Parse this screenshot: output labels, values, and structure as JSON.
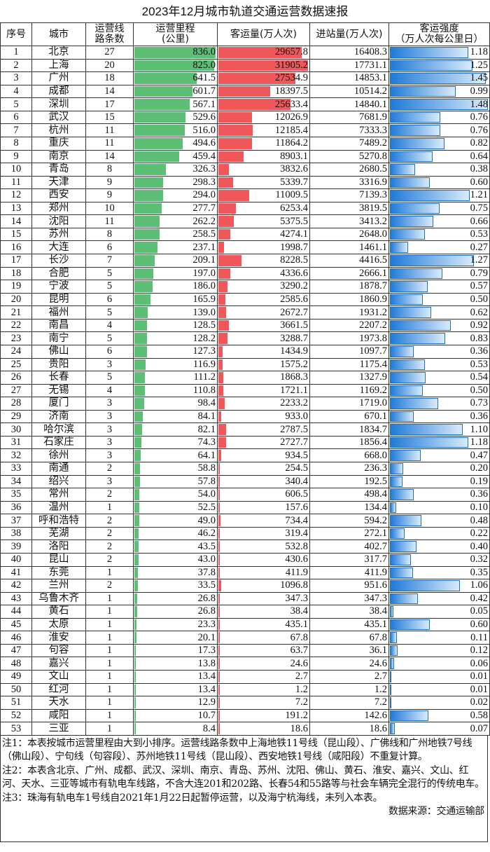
{
  "title": "2023年12月城市轨道交通运营数据速报",
  "headers": [
    "序号",
    "城市",
    "运营线路条数",
    "运营里程(公里)",
    "客运量(万人次)",
    "进站量(万人次)",
    "客运强度（万人次每公里日）"
  ],
  "header_lines": [
    [
      "序号"
    ],
    [
      "城市"
    ],
    [
      "运营线",
      "路条数"
    ],
    [
      "运营里程",
      "(公里)"
    ],
    [
      "客运量(万人次)"
    ],
    [
      "进站量(万人次)"
    ],
    [
      "客运强度",
      "（万人次每公里日）"
    ]
  ],
  "colors": {
    "mileage_bar": "#5cbf75",
    "passenger_bar": "#f0575a",
    "intensity_bar": "#1f7ad8"
  },
  "rows": [
    [
      "1",
      "北京",
      "27",
      "836.0",
      "29657.8",
      "16408.3",
      "1.18"
    ],
    [
      "2",
      "上海",
      "20",
      "825.0",
      "31905.2",
      "17731.1",
      "1.25"
    ],
    [
      "3",
      "广州",
      "18",
      "641.5",
      "27534.9",
      "14853.1",
      "1.45"
    ],
    [
      "4",
      "成都",
      "14",
      "601.7",
      "18397.5",
      "10514.2",
      "0.99"
    ],
    [
      "5",
      "深圳",
      "17",
      "567.1",
      "25633.4",
      "14840.1",
      "1.48"
    ],
    [
      "6",
      "武汉",
      "15",
      "529.6",
      "12026.9",
      "7681.9",
      "0.76"
    ],
    [
      "7",
      "杭州",
      "11",
      "516.0",
      "12185.4",
      "7333.3",
      "0.76"
    ],
    [
      "8",
      "重庆",
      "11",
      "494.6",
      "11864.2",
      "7489.2",
      "0.82"
    ],
    [
      "9",
      "南京",
      "14",
      "459.4",
      "8903.1",
      "5270.8",
      "0.64"
    ],
    [
      "10",
      "青岛",
      "8",
      "326.3",
      "3832.6",
      "2680.5",
      "0.38"
    ],
    [
      "11",
      "天津",
      "9",
      "298.3",
      "5339.7",
      "3316.9",
      "0.60"
    ],
    [
      "12",
      "西安",
      "9",
      "294.0",
      "11009.5",
      "7139.3",
      "1.21"
    ],
    [
      "13",
      "郑州",
      "10",
      "277.7",
      "6253.4",
      "3819.5",
      "0.75"
    ],
    [
      "14",
      "沈阳",
      "11",
      "262.2",
      "5375.5",
      "3413.2",
      "0.66"
    ],
    [
      "15",
      "苏州",
      "8",
      "258.5",
      "4274.1",
      "2648.0",
      "0.53"
    ],
    [
      "16",
      "大连",
      "6",
      "237.1",
      "1998.7",
      "1461.1",
      "0.27"
    ],
    [
      "17",
      "长沙",
      "7",
      "209.1",
      "8228.5",
      "4416.5",
      "1.27"
    ],
    [
      "18",
      "合肥",
      "5",
      "197.0",
      "4336.6",
      "2666.1",
      "0.79"
    ],
    [
      "19",
      "宁波",
      "5",
      "186.0",
      "3290.2",
      "1878.7",
      "0.57"
    ],
    [
      "20",
      "昆明",
      "6",
      "165.9",
      "2585.6",
      "1860.9",
      "0.50"
    ],
    [
      "21",
      "福州",
      "5",
      "139.0",
      "2672.7",
      "1931.2",
      "0.62"
    ],
    [
      "22",
      "南昌",
      "4",
      "128.5",
      "3661.5",
      "2207.2",
      "0.92"
    ],
    [
      "23",
      "南宁",
      "5",
      "128.2",
      "3288.7",
      "1973.8",
      "0.83"
    ],
    [
      "24",
      "佛山",
      "6",
      "127.3",
      "1434.9",
      "1097.7",
      "0.36"
    ],
    [
      "25",
      "贵阳",
      "3",
      "116.9",
      "1575.2",
      "1175.4",
      "0.53"
    ],
    [
      "26",
      "长春",
      "5",
      "111.2",
      "1868.3",
      "1327.9",
      "0.54"
    ],
    [
      "27",
      "无锡",
      "4",
      "110.8",
      "1721.1",
      "1169.2",
      "0.50"
    ],
    [
      "28",
      "厦门",
      "3",
      "98.4",
      "2233.2",
      "1719.0",
      "0.73"
    ],
    [
      "29",
      "济南",
      "3",
      "84.1",
      "933.0",
      "670.1",
      "0.36"
    ],
    [
      "30",
      "哈尔滨",
      "3",
      "82.1",
      "2787.5",
      "1834.7",
      "1.10"
    ],
    [
      "31",
      "石家庄",
      "3",
      "74.3",
      "2727.7",
      "1856.4",
      "1.18"
    ],
    [
      "32",
      "徐州",
      "3",
      "64.1",
      "934.5",
      "668.0",
      "0.47"
    ],
    [
      "33",
      "南通",
      "2",
      "58.8",
      "254.5",
      "236.3",
      "0.20"
    ],
    [
      "34",
      "绍兴",
      "3",
      "57.8",
      "340.4",
      "192.5",
      "0.19"
    ],
    [
      "35",
      "常州",
      "2",
      "54.0",
      "606.5",
      "498.4",
      "0.36"
    ],
    [
      "36",
      "温州",
      "1",
      "52.5",
      "157.6",
      "134.4",
      "0.10"
    ],
    [
      "37",
      "呼和浩特",
      "2",
      "49.0",
      "734.4",
      "594.2",
      "0.48"
    ],
    [
      "38",
      "芜湖",
      "2",
      "46.2",
      "319.4",
      "272.1",
      "0.22"
    ],
    [
      "39",
      "洛阳",
      "2",
      "43.5",
      "532.8",
      "402.7",
      "0.40"
    ],
    [
      "40",
      "昆山",
      "2",
      "43.0",
      "430.6",
      "317.7",
      "0.32"
    ],
    [
      "41",
      "东莞",
      "1",
      "37.8",
      "411.9",
      "411.9",
      "0.35"
    ],
    [
      "42",
      "兰州",
      "2",
      "33.5",
      "1096.8",
      "951.6",
      "1.06"
    ],
    [
      "43",
      "乌鲁木齐",
      "1",
      "26.8",
      "347.3",
      "347.3",
      "0.42"
    ],
    [
      "44",
      "黄石",
      "1",
      "26.8",
      "38.4",
      "38.4",
      "0.05"
    ],
    [
      "45",
      "太原",
      "1",
      "23.3",
      "435.1",
      "435.1",
      "0.60"
    ],
    [
      "46",
      "淮安",
      "1",
      "20.1",
      "67.8",
      "67.8",
      "0.11"
    ],
    [
      "47",
      "句容",
      "1",
      "17.3",
      "63.7",
      "36.1",
      "0.12"
    ],
    [
      "48",
      "嘉兴",
      "1",
      "13.8",
      "24.6",
      "24.6",
      "0.06"
    ],
    [
      "49",
      "文山",
      "1",
      "13.4",
      "2.7",
      "2.7",
      "0.01"
    ],
    [
      "50",
      "红河",
      "1",
      "13.4",
      "1.2",
      "1.2",
      "0.01"
    ],
    [
      "51",
      "天水",
      "1",
      "12.9",
      "7.2",
      "7.2",
      "0.02"
    ],
    [
      "52",
      "咸阳",
      "1",
      "10.7",
      "191.2",
      "142.6",
      "0.58"
    ],
    [
      "53",
      "三亚",
      "1",
      "8.4",
      "18.6",
      "18.6",
      "0.07"
    ]
  ],
  "notes": [
    "注1：本表按城市运营里程由大到小排序。运营线路条数中上海地铁11号线（昆山段）、广佛线和广州地铁7号线（佛山段）、宁句线（句容段）、苏州地铁11号线（昆山段）、西安地铁1号线（咸阳段）不重复计算。",
    "注2：本表含北京、广州、成都、武汉、深圳、南京、青岛、苏州、沈阳、佛山、黄石、淮安、嘉兴、文山、红河、天水、三亚等城市有轨电车线路，不含大连201和202路、长春54和55路等与社会车辆完全混行的传统电车。",
    "注3：珠海有轨电车1号线自2021年1月22日起暂停运营，以及海宁杭海线，未列入本表。"
  ],
  "source": "数据来源：交通运输部"
}
